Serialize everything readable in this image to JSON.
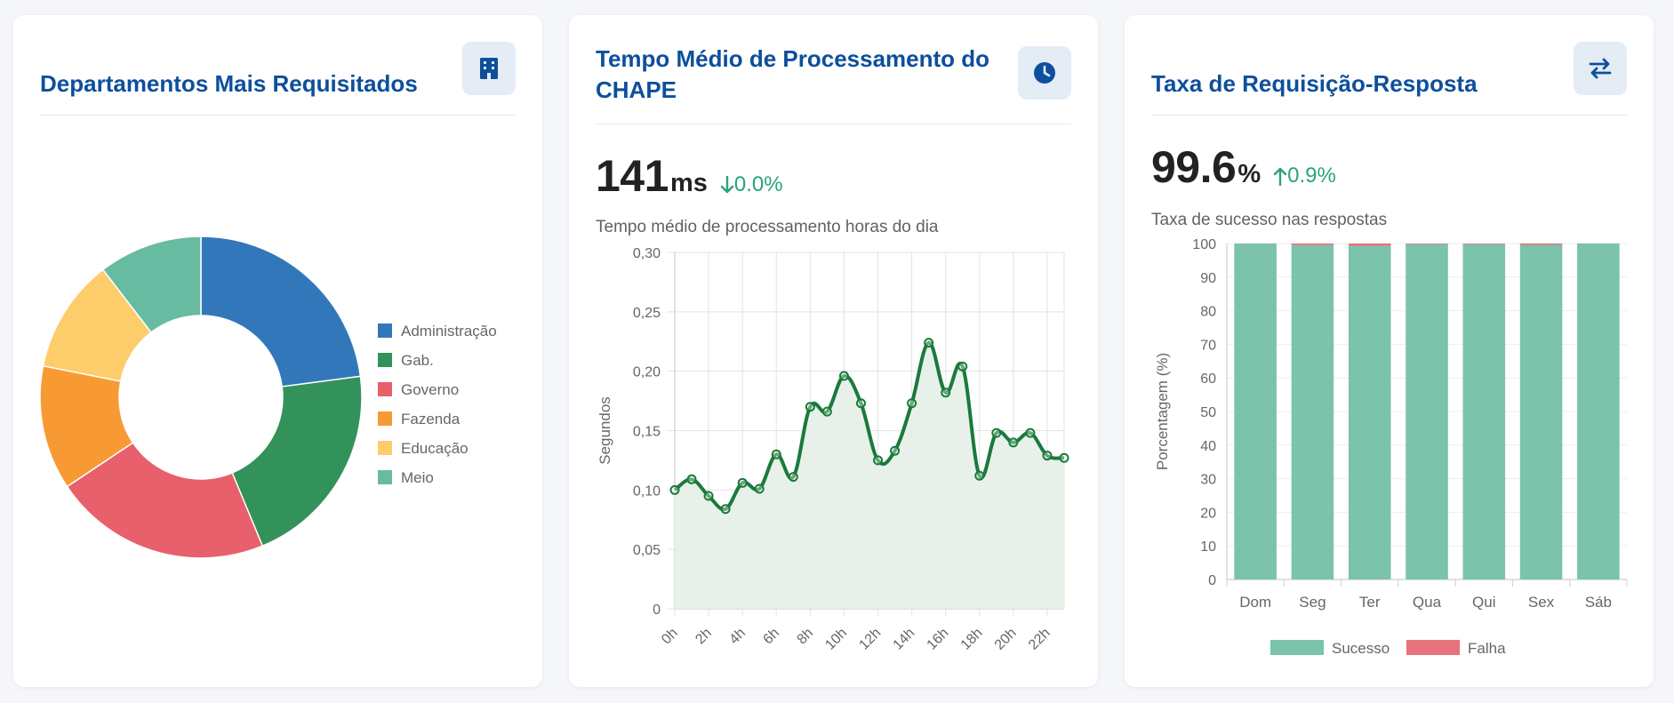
{
  "cards": {
    "departments": {
      "title": "Departamentos Mais Requisitados",
      "icon": "building-icon"
    },
    "processing": {
      "title_line1": "Tempo Médio de Processamento do",
      "title_line2": "CHAPE",
      "icon": "clock-icon",
      "value": "141",
      "unit": "ms",
      "delta": "0.0%",
      "delta_direction": "down",
      "subtitle": "Tempo médio de processamento horas do dia"
    },
    "rate": {
      "title": "Taxa de Requisição-Resposta",
      "icon": "arrows-exchange-icon",
      "value": "99.6",
      "unit": "%",
      "delta": "0.9%",
      "delta_direction": "up",
      "subtitle": "Taxa de sucesso nas respostas"
    }
  },
  "colors": {
    "accent": "#0d4f9c",
    "positive": "#2aa37a"
  },
  "chart_data": [
    {
      "type": "pie",
      "variant": "doughnut",
      "title": "",
      "labels": [
        "Administração",
        "Gab.",
        "Governo",
        "Fazenda",
        "Educação",
        "Meio"
      ],
      "values": [
        22,
        20,
        21,
        12,
        11,
        10
      ],
      "colors": [
        "#3377bb",
        "#33925a",
        "#e8606b",
        "#f89a34",
        "#fdcd6b",
        "#67bba0"
      ],
      "legend": "right"
    },
    {
      "type": "area",
      "title": "",
      "x": [
        "0h",
        "1h",
        "2h",
        "3h",
        "4h",
        "5h",
        "6h",
        "7h",
        "8h",
        "9h",
        "10h",
        "11h",
        "12h",
        "13h",
        "14h",
        "15h",
        "16h",
        "17h",
        "18h",
        "19h",
        "20h",
        "21h",
        "22h",
        "23h"
      ],
      "x_tick_labels": [
        "0h",
        "2h",
        "4h",
        "6h",
        "8h",
        "10h",
        "12h",
        "14h",
        "16h",
        "18h",
        "20h",
        "22h"
      ],
      "values": [
        0.1,
        0.109,
        0.095,
        0.084,
        0.106,
        0.101,
        0.13,
        0.111,
        0.17,
        0.166,
        0.196,
        0.173,
        0.125,
        0.133,
        0.173,
        0.224,
        0.182,
        0.204,
        0.112,
        0.148,
        0.14,
        0.148,
        0.129,
        0.127
      ],
      "ylabel": "Segundos",
      "ylim": [
        0,
        0.3
      ],
      "y_ticks": [
        "0",
        "0,05",
        "0,10",
        "0,15",
        "0,20",
        "0,25",
        "0,30"
      ],
      "line_color": "#1a7a3a",
      "fill_color": "#e4efe7",
      "grid": true
    },
    {
      "type": "bar",
      "stacked": true,
      "title": "",
      "categories": [
        "Dom",
        "Seg",
        "Ter",
        "Qua",
        "Qui",
        "Sex",
        "Sáb"
      ],
      "series": [
        {
          "name": "Sucesso",
          "values": [
            100,
            99.5,
            99.3,
            99.8,
            99.8,
            99.6,
            100
          ],
          "color": "#7bc3ab"
        },
        {
          "name": "Falha",
          "values": [
            0,
            0.5,
            0.7,
            0.2,
            0.2,
            0.4,
            0
          ],
          "color": "#e8727c"
        }
      ],
      "ylabel": "Porcentagem (%)",
      "ylim": [
        0,
        100
      ],
      "y_ticks": [
        "0",
        "10",
        "20",
        "30",
        "40",
        "50",
        "60",
        "70",
        "80",
        "90",
        "100"
      ],
      "legend": "bottom"
    }
  ]
}
